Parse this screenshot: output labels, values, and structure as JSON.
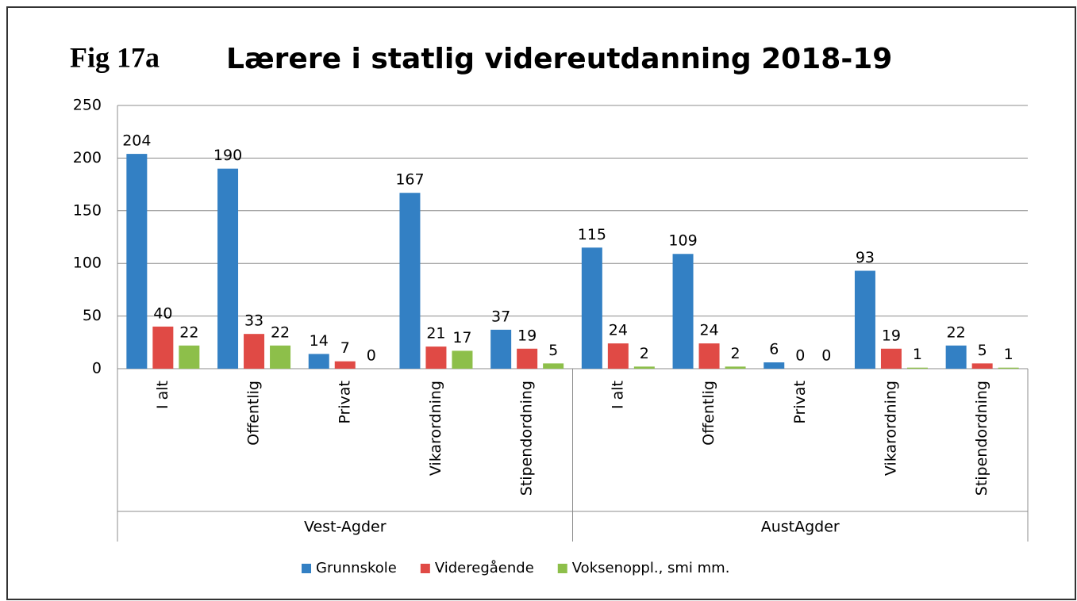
{
  "chart_data": {
    "type": "bar",
    "figure_label": "Fig 17a",
    "title": "Lærere i statlig videreutdanning 2018-19",
    "categories": [
      "I alt",
      "Offentlig",
      "Privat",
      "Vikarordning",
      "Stipendordning",
      "I alt",
      "Offentlig",
      "Privat",
      "Vikarordning",
      "Stipendordning"
    ],
    "group_labels": [
      "Vest-Agder",
      "AustAgder"
    ],
    "series": [
      {
        "name": "Grunnskole",
        "color": "#3380c4",
        "values": [
          204,
          190,
          14,
          167,
          37,
          115,
          109,
          6,
          93,
          22
        ]
      },
      {
        "name": "Videregående",
        "color": "#e04a45",
        "values": [
          40,
          33,
          7,
          21,
          19,
          24,
          24,
          0,
          19,
          5
        ]
      },
      {
        "name": "Voksenoppl., smi mm.",
        "color": "#8dbf4a",
        "values": [
          22,
          22,
          0,
          17,
          5,
          2,
          2,
          0,
          1,
          1
        ]
      }
    ],
    "ylim": [
      0,
      250
    ],
    "yticks": [
      0,
      50,
      100,
      150,
      200,
      250
    ],
    "grid": true,
    "legend": "bottom"
  }
}
